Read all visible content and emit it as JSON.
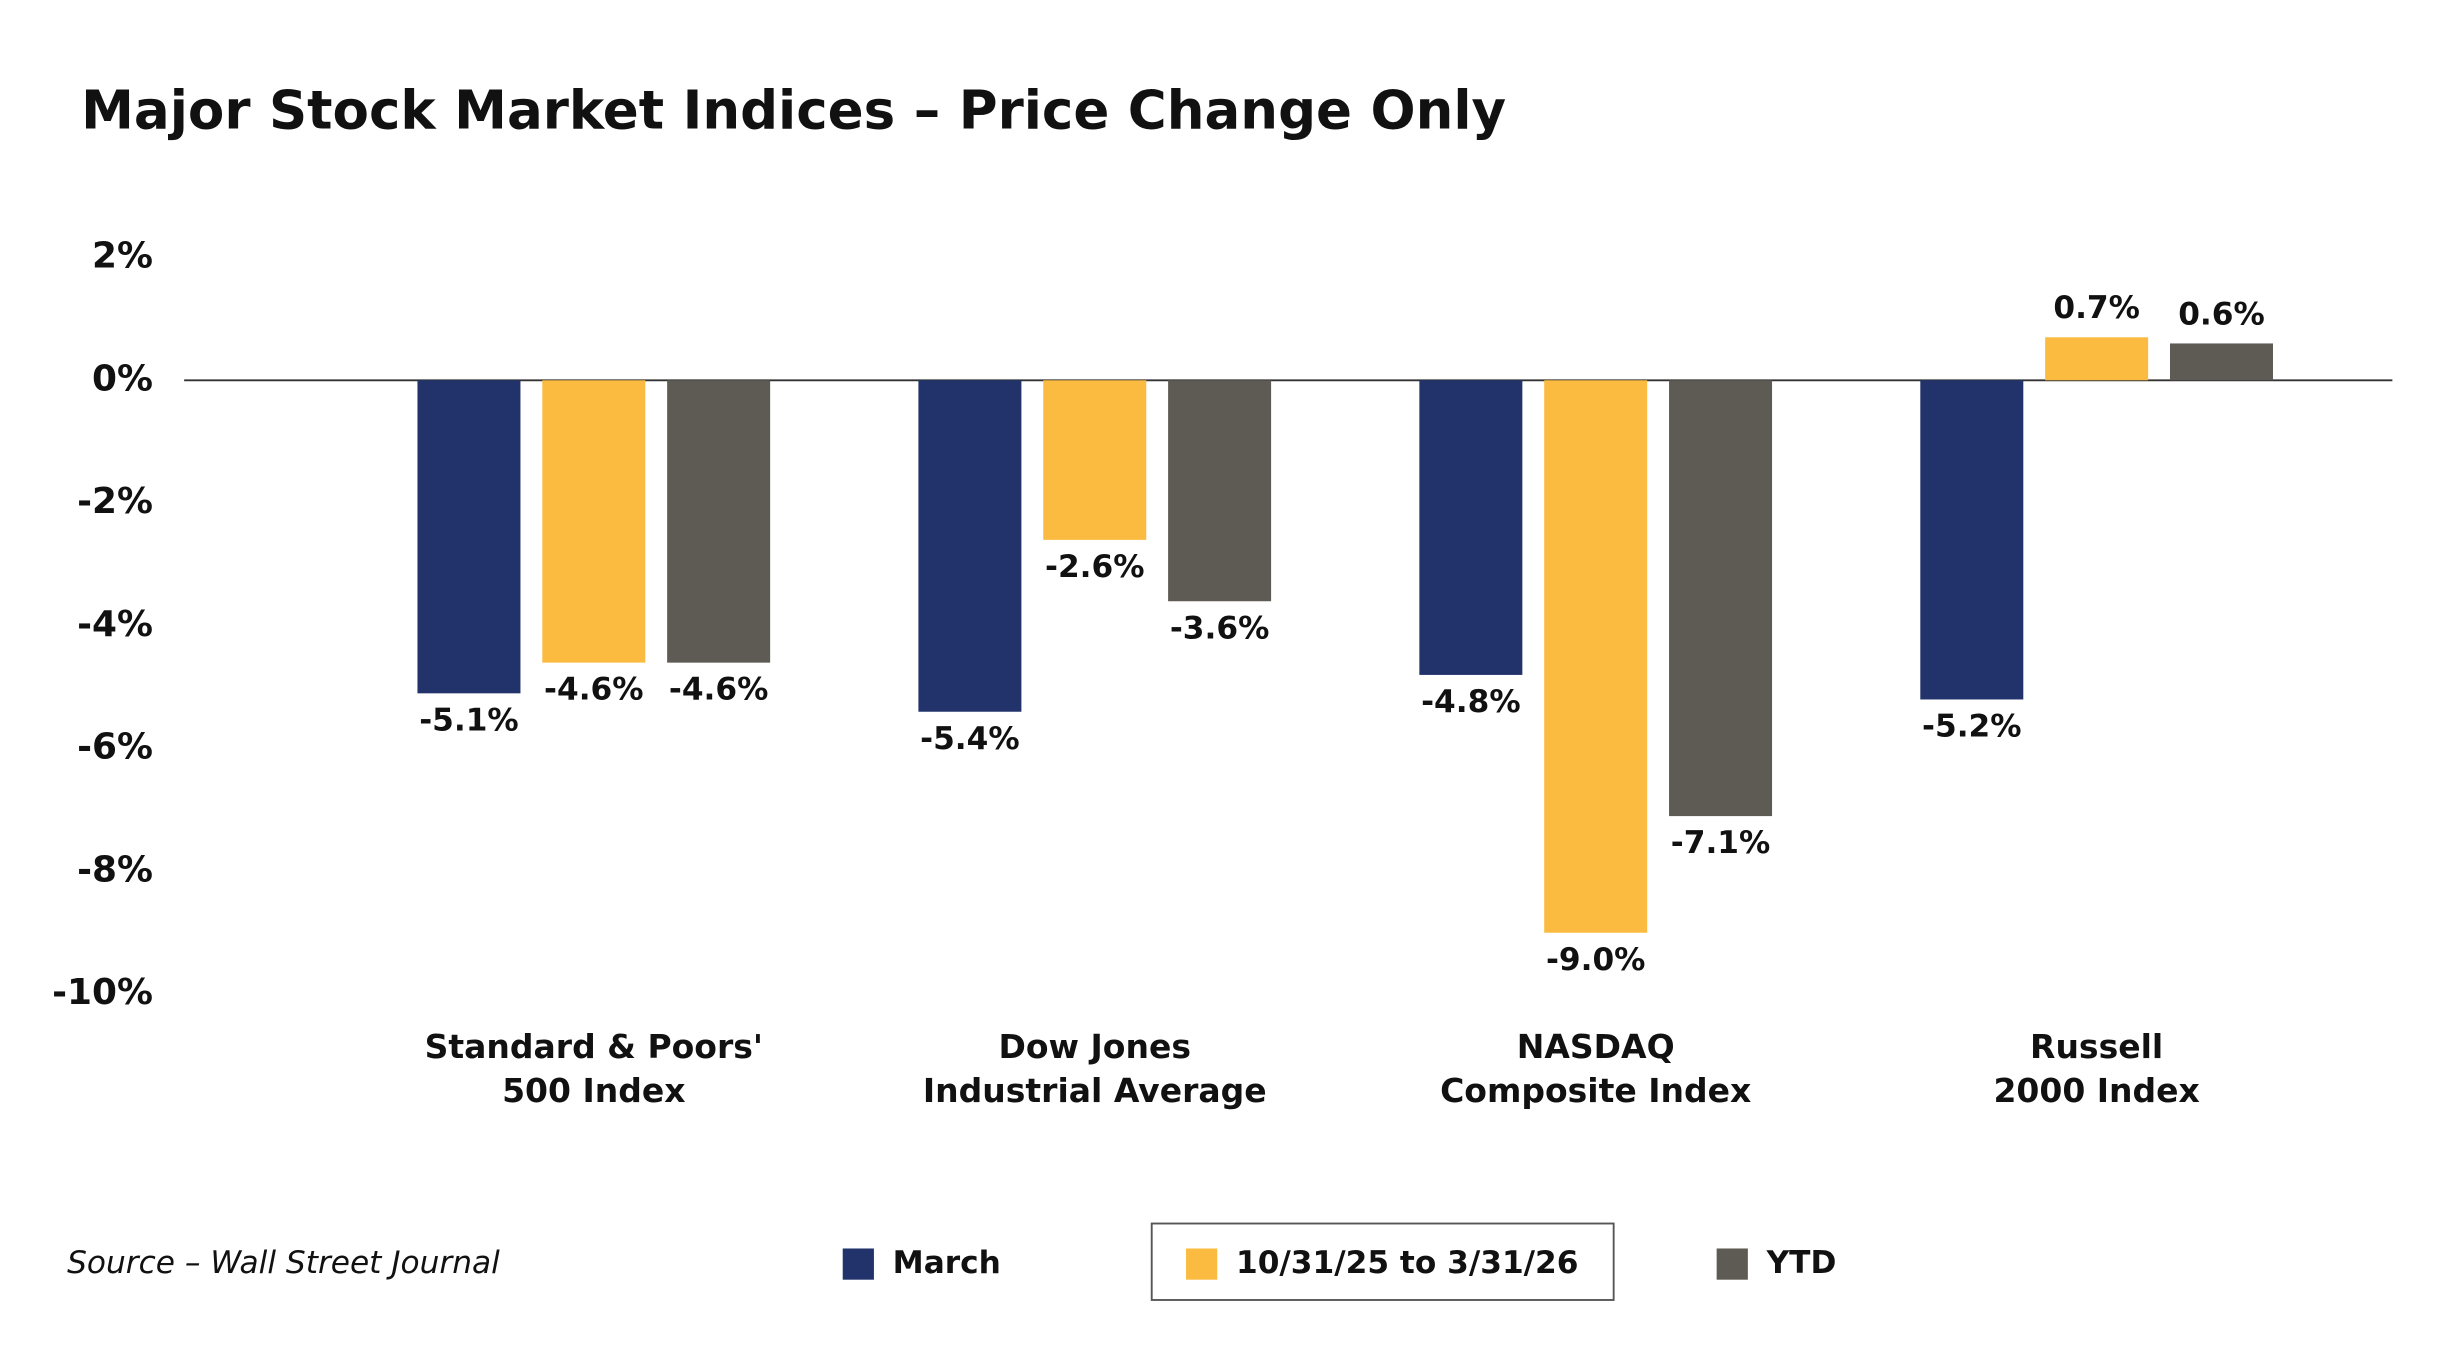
{
  "chart_data": {
    "type": "bar",
    "title": "Major Stock Market Indices – Price Change Only",
    "categories": [
      "Standard & Poors'\n500 Index",
      "Dow Jones\nIndustrial Average",
      "NASDAQ\nComposite Index",
      "Russell\n2000 Index"
    ],
    "series": [
      {
        "name": "March",
        "color": "#22336b",
        "values": [
          -5.1,
          -5.4,
          -4.8,
          -5.2
        ],
        "value_labels": [
          "-5.1%",
          "-5.4%",
          "-4.8%",
          "-5.2%"
        ]
      },
      {
        "name": "10/31/25 to 3/31/26",
        "color": "#fbbb40",
        "values": [
          -4.6,
          -2.6,
          -9.0,
          0.7
        ],
        "value_labels": [
          "-4.6%",
          "-2.6%",
          "-9.0%",
          "0.7%"
        ]
      },
      {
        "name": "YTD",
        "color": "#5e5b55",
        "values": [
          -4.6,
          -3.6,
          -7.1,
          0.6
        ],
        "value_labels": [
          "-4.6%",
          "-3.6%",
          "-7.1%",
          "0.6%"
        ]
      }
    ],
    "ylim": [
      -10,
      2
    ],
    "yticks": [
      {
        "value": 2,
        "label": "2%"
      },
      {
        "value": 0,
        "label": "0%"
      },
      {
        "value": -2,
        "label": "-2%"
      },
      {
        "value": -4,
        "label": "-4%"
      },
      {
        "value": -6,
        "label": "-6%"
      },
      {
        "value": -8,
        "label": "-8%"
      },
      {
        "value": -10,
        "label": "-10%"
      }
    ],
    "source": "Source – Wall Street Journal"
  }
}
